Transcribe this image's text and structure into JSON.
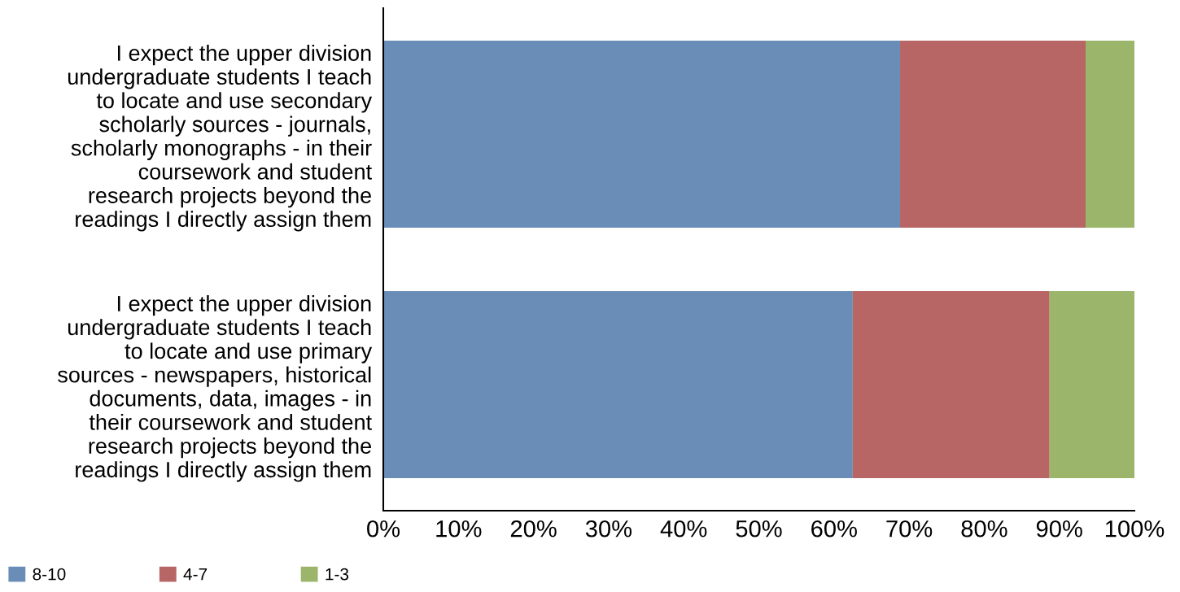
{
  "chart_data": {
    "type": "bar",
    "orientation": "horizontal",
    "stacked": true,
    "categories": [
      "I expect the upper division\nundergraduate students I teach\nto locate and use secondary\nscholarly sources - journals,\nscholarly monographs - in their\ncoursework and student\nresearch projects beyond the\nreadings I directly assign them",
      "I expect the upper division\nundergraduate students I teach\nto locate and use primary\nsources - newspapers, historical\ndocuments, data, images - in\ntheir coursework and student\nresearch projects beyond the\nreadings I directly assign them"
    ],
    "series": [
      {
        "name": "8-10",
        "color": "#6a8db8",
        "values": [
          68.8,
          62.5
        ]
      },
      {
        "name": "4-7",
        "color": "#b86566",
        "values": [
          24.7,
          26.2
        ]
      },
      {
        "name": "1-3",
        "color": "#9bb56b",
        "values": [
          6.5,
          11.3
        ]
      }
    ],
    "xlim": [
      0,
      100
    ],
    "xticks": [
      {
        "value": 0,
        "label": "0%"
      },
      {
        "value": 10,
        "label": "10%"
      },
      {
        "value": 20,
        "label": "20%"
      },
      {
        "value": 30,
        "label": "30%"
      },
      {
        "value": 40,
        "label": "40%"
      },
      {
        "value": 50,
        "label": "50%"
      },
      {
        "value": 60,
        "label": "60%"
      },
      {
        "value": 70,
        "label": "70%"
      },
      {
        "value": 80,
        "label": "80%"
      },
      {
        "value": 90,
        "label": "90%"
      },
      {
        "value": 100,
        "label": "100%"
      }
    ],
    "grid": false,
    "legend": "bottom left"
  }
}
